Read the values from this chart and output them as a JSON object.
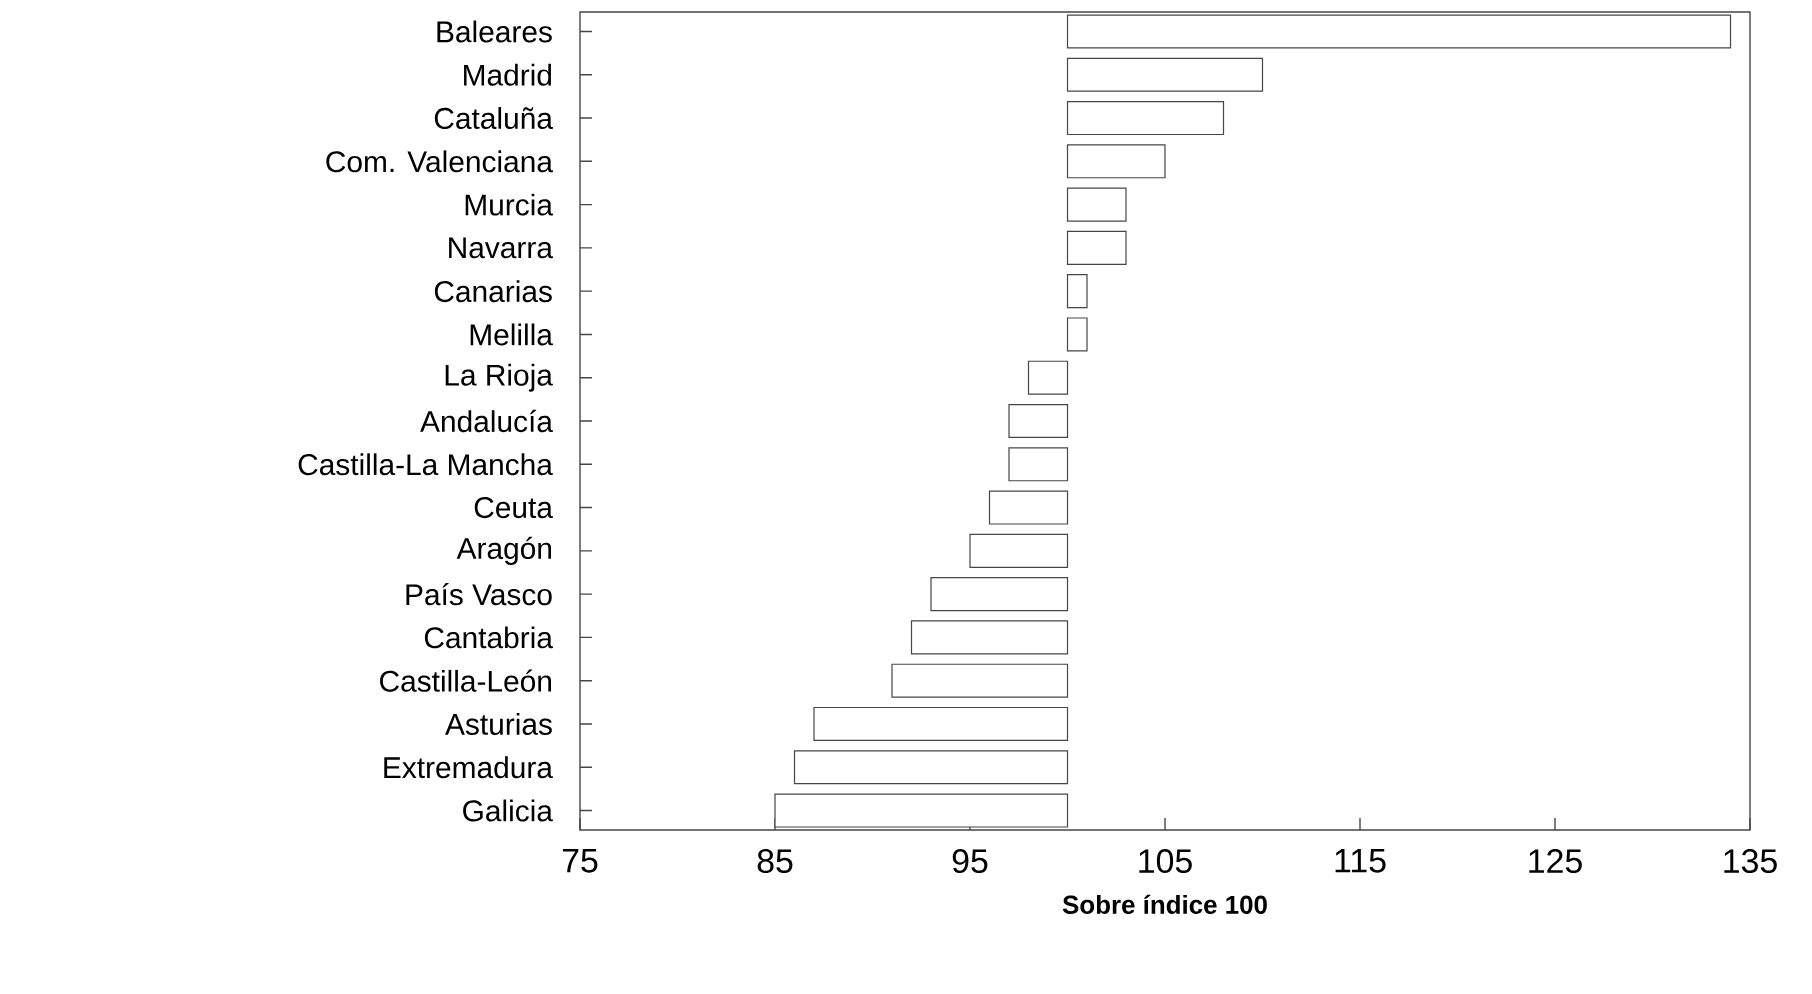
{
  "chart_data": {
    "type": "bar",
    "orientation": "horizontal",
    "xlabel": "Sobre índice 100",
    "categories": [
      "Baleares",
      "Madrid",
      "Cataluña",
      "Com. Valenciana",
      "Murcia",
      "Navarra",
      "Canarias",
      "Melilla",
      "La Rioja",
      "Andalucía",
      "Castilla-La Mancha",
      "Ceuta",
      "Aragón",
      "País Vasco",
      "Cantabria",
      "Castilla-León",
      "Asturias",
      "Extremadura",
      "Galicia"
    ],
    "base": [
      100,
      100,
      100,
      100,
      100,
      100,
      100,
      100,
      100,
      100,
      100,
      100,
      100,
      100,
      100,
      100,
      100,
      100,
      100
    ],
    "values": [
      34,
      10,
      8,
      5,
      3,
      3,
      1,
      1,
      -2,
      -3,
      -3,
      -4,
      -5,
      -7,
      -8,
      -9,
      -13,
      -14,
      -15
    ],
    "color": "#ffffff",
    "xlim": [
      75,
      135
    ],
    "xticks": [
      75,
      85,
      95,
      105,
      115,
      125,
      135
    ]
  }
}
